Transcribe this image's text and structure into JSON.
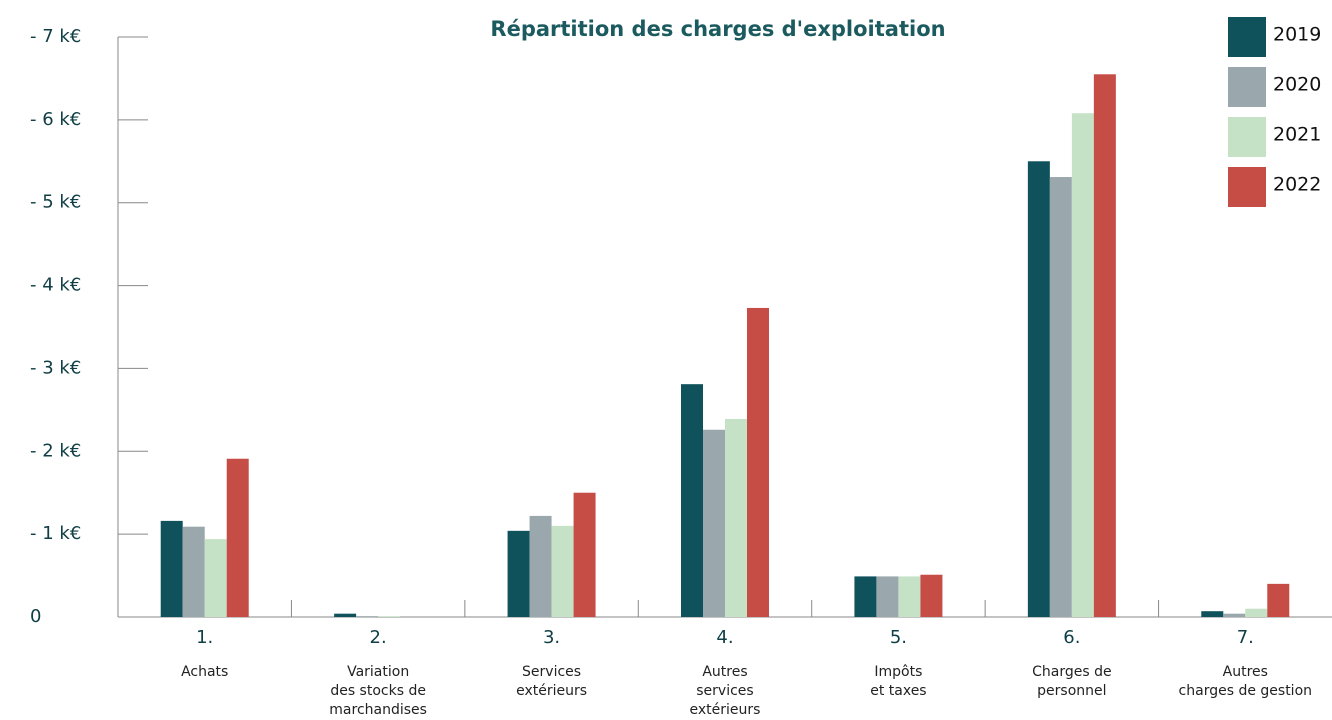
{
  "chart_data": {
    "type": "bar",
    "title": "Répartition des charges d'exploitation",
    "categories": [
      "1.",
      "2.",
      "3.",
      "4.",
      "5.",
      "6.",
      "7."
    ],
    "category_descriptions": [
      [
        "Achats"
      ],
      [
        "Variation",
        "des stocks de",
        "marchandises"
      ],
      [
        "Services",
        "extérieurs"
      ],
      [
        "Autres",
        "services",
        "extérieurs"
      ],
      [
        "Impôts",
        "et taxes"
      ],
      [
        "Charges de",
        "personnel"
      ],
      [
        "Autres",
        "charges de gestion"
      ]
    ],
    "series": [
      {
        "name": "2019",
        "color": "#0f525c",
        "values": [
          -1.16,
          -0.04,
          -1.04,
          -2.81,
          -0.49,
          -5.5,
          -0.07
        ]
      },
      {
        "name": "2020",
        "color": "#9aa8ad",
        "values": [
          -1.09,
          -0.01,
          -1.22,
          -2.26,
          -0.49,
          -5.31,
          -0.04
        ]
      },
      {
        "name": "2021",
        "color": "#c5e2c6",
        "values": [
          -0.94,
          -0.01,
          -1.1,
          -2.39,
          -0.49,
          -6.08,
          -0.1
        ]
      },
      {
        "name": "2022",
        "color": "#c64c46",
        "values": [
          -1.91,
          0,
          -1.5,
          -3.73,
          -0.51,
          -6.55,
          -0.4
        ]
      }
    ],
    "ylim": [
      0,
      -7
    ],
    "yticks": [
      0,
      {
        "value": -1,
        "label": "- 1 k€"
      },
      {
        "value": -2,
        "label": "- 2 k€"
      },
      {
        "value": -3,
        "label": "- 3 k€"
      },
      {
        "value": -4,
        "label": "- 4 k€"
      },
      {
        "value": -5,
        "label": "- 5 k€"
      },
      {
        "value": -6,
        "label": "- 6 k€"
      },
      {
        "value": -7,
        "label": "- 7 k€"
      }
    ],
    "legend": "top-right"
  }
}
